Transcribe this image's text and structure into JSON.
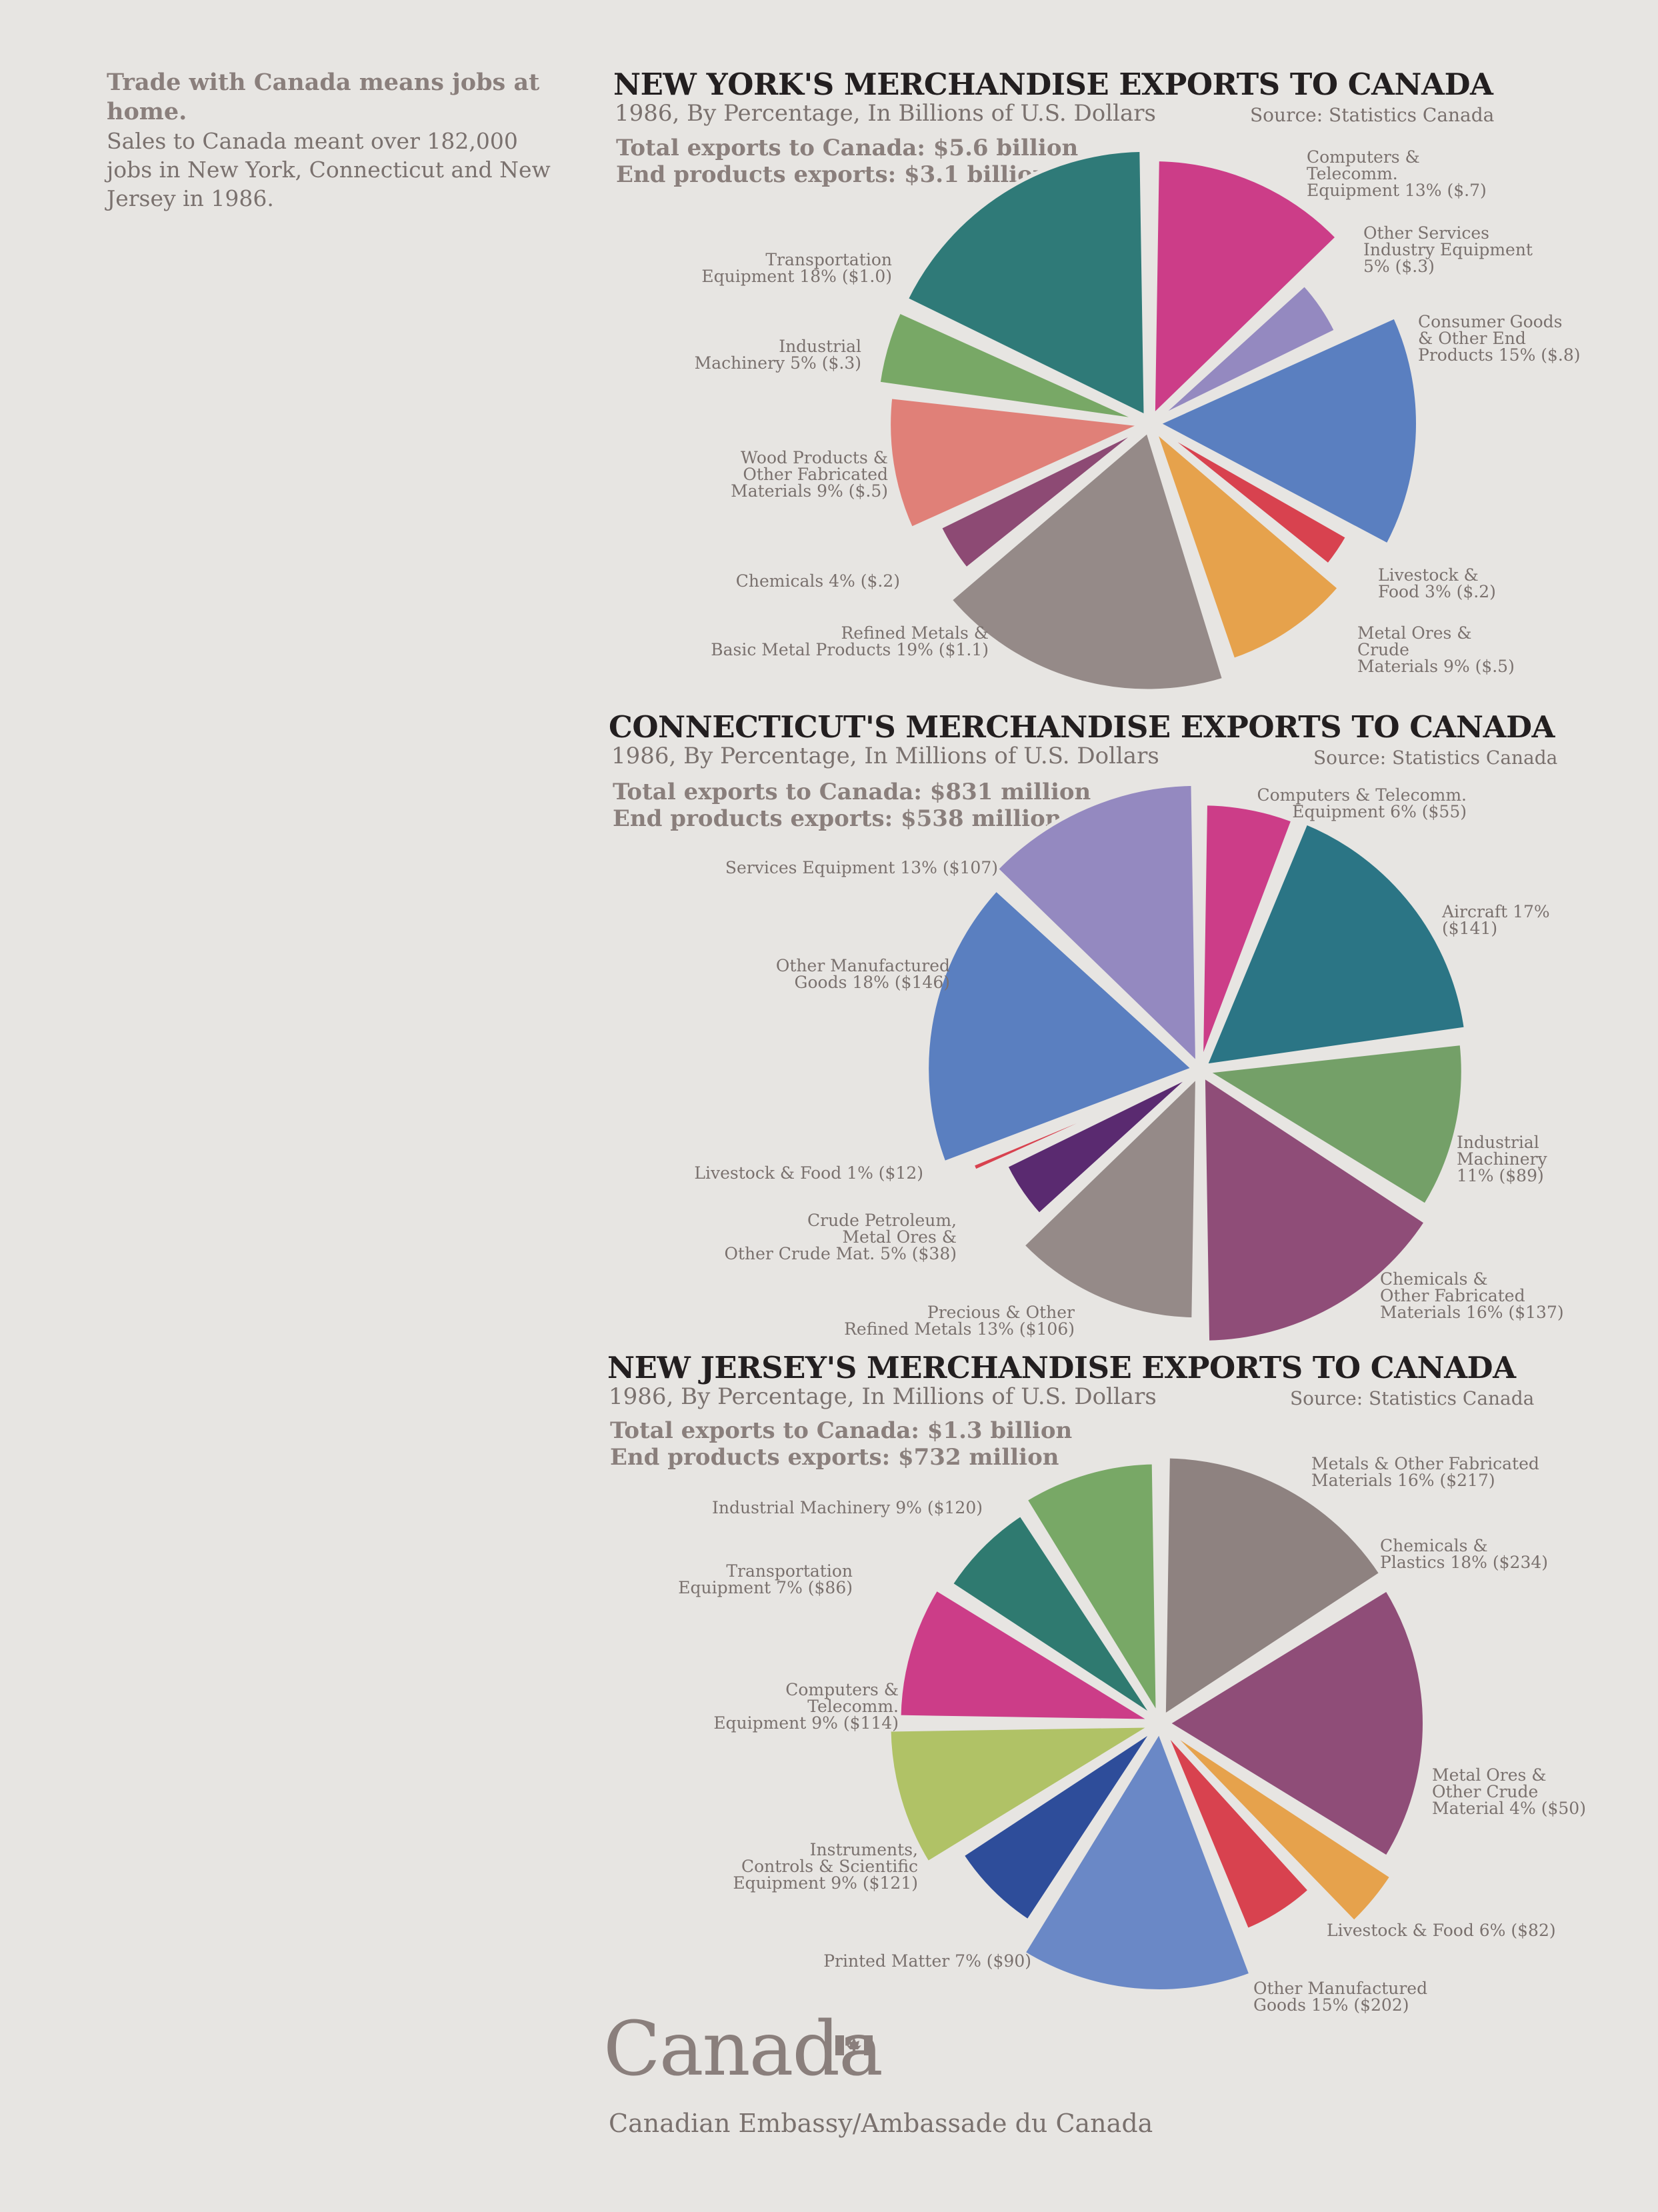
{
  "intro": {
    "heading": "Trade with Canada means jobs at home.",
    "body": "Sales to Canada meant over 182,000 jobs in New York, Connecticut and New Jersey in 1986."
  },
  "charts": [
    {
      "title": "NEW YORK'S MERCHANDISE EXPORTS TO CANADA",
      "subtitle": "1986, By Percentage, In Billions of U.S. Dollars",
      "source": "Source: Statistics Canada",
      "total_line": "Total exports to Canada: $5.6 billion",
      "end_line": "End products exports: $3.1 billion"
    },
    {
      "title": "CONNECTICUT'S MERCHANDISE EXPORTS TO CANADA",
      "subtitle": "1986, By Percentage, In Millions of U.S. Dollars",
      "source": "Source: Statistics Canada",
      "total_line": "Total exports to Canada: $831 million",
      "end_line": "End products exports: $538 million"
    },
    {
      "title": "NEW JERSEY'S MERCHANDISE EXPORTS TO CANADA",
      "subtitle": "1986, By Percentage, In Millions of U.S. Dollars",
      "source": "Source: Statistics Canada",
      "total_line": "Total exports to Canada: $1.3 billion",
      "end_line": "End products exports: $732 million"
    }
  ],
  "chart_data": [
    {
      "type": "pie",
      "title": "NEW YORK'S MERCHANDISE EXPORTS TO CANADA",
      "slices": [
        {
          "label": [
            "Computers &",
            "Telecomm.",
            "Equipment 13% ($.7)"
          ],
          "name": "Computers & Telecomm. Equipment",
          "percent": 13,
          "value": 0.7,
          "color": "#cc3d88"
        },
        {
          "label": [
            "Other Services",
            "Industry Equipment",
            "5% ($.3)"
          ],
          "name": "Other Services Industry Equipment",
          "percent": 5,
          "value": 0.3,
          "color": "#9489c0"
        },
        {
          "label": [
            "Consumer Goods",
            "& Other End",
            "Products 15% ($.8)"
          ],
          "name": "Consumer Goods & Other End Products",
          "percent": 15,
          "value": 0.8,
          "color": "#5a7fc0"
        },
        {
          "label": [
            "Livestock &",
            "Food 3% ($.2)"
          ],
          "name": "Livestock & Food",
          "percent": 3,
          "value": 0.2,
          "color": "#d8424f"
        },
        {
          "label": [
            "Metal Ores &",
            "Crude",
            "Materials 9% ($.5)"
          ],
          "name": "Metal Ores & Crude Materials",
          "percent": 9,
          "value": 0.5,
          "color": "#e6a24c"
        },
        {
          "label": [
            "Refined Metals &",
            "Basic Metal Products 19% ($1.1)"
          ],
          "name": "Refined Metals & Basic Metal Products",
          "percent": 19,
          "value": 1.1,
          "color": "#958a88"
        },
        {
          "label": [
            "Chemicals 4% ($.2)"
          ],
          "name": "Chemicals",
          "percent": 4,
          "value": 0.2,
          "color": "#8d4a74"
        },
        {
          "label": [
            "Wood Products &",
            "Other Fabricated",
            "Materials 9% ($.5)"
          ],
          "name": "Wood Products & Other Fabricated Materials",
          "percent": 9,
          "value": 0.5,
          "color": "#e08078"
        },
        {
          "label": [
            "Industrial",
            "Machinery 5% ($.3)"
          ],
          "name": "Industrial Machinery",
          "percent": 5,
          "value": 0.3,
          "color": "#78a866"
        },
        {
          "label": [
            "Transportation",
            "Equipment 18% ($1.0)"
          ],
          "name": "Transportation Equipment",
          "percent": 18,
          "value": 1.0,
          "color": "#2f7a78"
        }
      ]
    },
    {
      "type": "pie",
      "title": "CONNECTICUT'S MERCHANDISE EXPORTS TO CANADA",
      "slices": [
        {
          "label": [
            "Computers & Telecomm.",
            "Equipment 6% ($55)"
          ],
          "name": "Computers & Telecomm. Equipment",
          "percent": 6,
          "value": 55,
          "color": "#cc3d88"
        },
        {
          "label": [
            "Aircraft 17%",
            "($141)"
          ],
          "name": "Aircraft",
          "percent": 17,
          "value": 141,
          "color": "#2b7585"
        },
        {
          "label": [
            "Industrial",
            "Machinery",
            "11% ($89)"
          ],
          "name": "Industrial Machinery",
          "percent": 11,
          "value": 89,
          "color": "#74a068"
        },
        {
          "label": [
            "Chemicals &",
            "Other Fabricated",
            "Materials 16% ($137)"
          ],
          "name": "Chemicals & Other Fabricated Materials",
          "percent": 16,
          "value": 137,
          "color": "#8f4d78"
        },
        {
          "label": [
            "Precious & Other",
            "Refined Metals 13% ($106)"
          ],
          "name": "Precious & Other Refined Metals",
          "percent": 13,
          "value": 106,
          "color": "#958a88"
        },
        {
          "label": [
            "Crude Petroleum,",
            "Metal Ores &",
            "Other Crude Mat. 5% ($38)"
          ],
          "name": "Crude Petroleum, Metal Ores & Other Crude Mat.",
          "percent": 5,
          "value": 38,
          "color": "#5a2a70"
        },
        {
          "label": [
            "Livestock & Food 1% ($12)"
          ],
          "name": "Livestock & Food",
          "percent": 1,
          "value": 12,
          "color": "#d8424f"
        },
        {
          "label": [
            "Other Manufactured",
            "Goods 18% ($146)"
          ],
          "name": "Other Manufactured Goods",
          "percent": 18,
          "value": 146,
          "color": "#5a7fc0"
        },
        {
          "label": [
            "Services Equipment 13% ($107)"
          ],
          "name": "Services Equipment",
          "percent": 13,
          "value": 107,
          "color": "#9489c0"
        }
      ]
    },
    {
      "type": "pie",
      "title": "NEW JERSEY'S MERCHANDISE EXPORTS TO CANADA",
      "slices": [
        {
          "label": [
            "Metals & Other Fabricated",
            "Materials 16% ($217)"
          ],
          "name": "Metals & Other Fabricated Materials",
          "percent": 16,
          "value": 217,
          "color": "#8e8280"
        },
        {
          "label": [
            "Chemicals &",
            "Plastics 18% ($234)"
          ],
          "name": "Chemicals & Plastics",
          "percent": 18,
          "value": 234,
          "color": "#8f4d78"
        },
        {
          "label": [
            "Metal Ores &",
            "Other Crude",
            "Material 4% ($50)"
          ],
          "name": "Metal Ores & Other Crude Material",
          "percent": 4,
          "value": 50,
          "color": "#e6a24c"
        },
        {
          "label": [
            "Livestock & Food 6% ($82)"
          ],
          "name": "Livestock & Food",
          "percent": 6,
          "value": 82,
          "color": "#d8424f"
        },
        {
          "label": [
            "Other Manufactured",
            "Goods 15% ($202)"
          ],
          "name": "Other Manufactured Goods",
          "percent": 15,
          "value": 202,
          "color": "#6a88c6"
        },
        {
          "label": [
            "Printed Matter 7% ($90)"
          ],
          "name": "Printed Matter",
          "percent": 7,
          "value": 90,
          "color": "#2e4d9a"
        },
        {
          "label": [
            "Instruments,",
            "Controls & Scientific",
            "Equipment 9% ($121)"
          ],
          "name": "Instruments, Controls & Scientific Equipment",
          "percent": 9,
          "value": 121,
          "color": "#b0c266"
        },
        {
          "label": [
            "Computers &",
            "Telecomm.",
            "Equipment 9% ($114)"
          ],
          "name": "Computers & Telecomm. Equipment",
          "percent": 9,
          "value": 114,
          "color": "#cc3d88"
        },
        {
          "label": [
            "Transportation",
            "Equipment 7% ($86)"
          ],
          "name": "Transportation Equipment",
          "percent": 7,
          "value": 86,
          "color": "#2f7a70"
        },
        {
          "label": [
            "Industrial  Machinery 9% ($120)"
          ],
          "name": "Industrial Machinery",
          "percent": 9,
          "value": 120,
          "color": "#78a866"
        }
      ]
    }
  ],
  "footer": {
    "wordmark": "Canada",
    "embassy": "Canadian Embassy/Ambassade du Canada"
  }
}
